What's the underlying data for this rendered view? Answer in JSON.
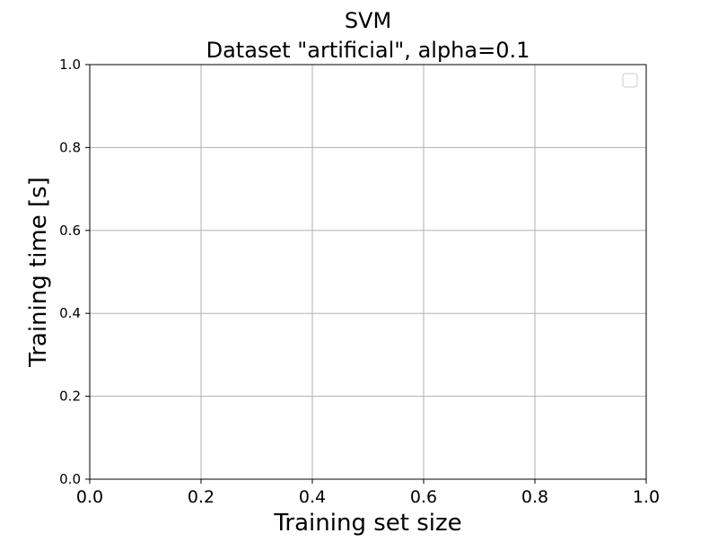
{
  "chart_data": {
    "type": "line",
    "title": "SVM",
    "subtitle": "Dataset \"artificial\", alpha=0.1",
    "xlabel": "Training set size",
    "ylabel": "Training time [s]",
    "xlim": [
      0.0,
      1.0
    ],
    "ylim": [
      0.0,
      1.0
    ],
    "x_ticks": [
      "0.0",
      "0.2",
      "0.4",
      "0.6",
      "0.8",
      "1.0"
    ],
    "y_ticks": [
      "0.0",
      "0.2",
      "0.4",
      "0.6",
      "0.8",
      "1.0"
    ],
    "grid": true,
    "legend": {
      "placement": "top-right",
      "entries": []
    },
    "series": []
  }
}
